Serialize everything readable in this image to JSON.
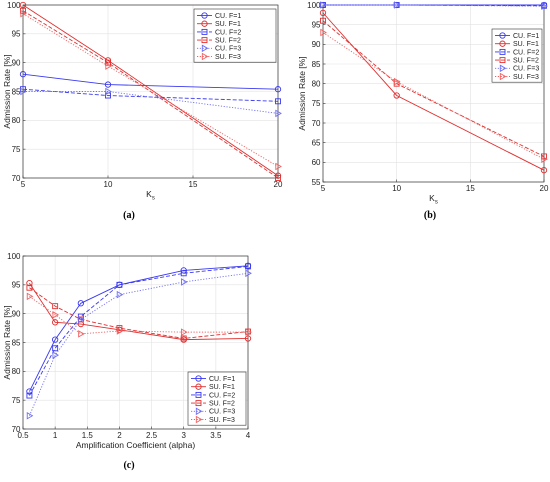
{
  "chart_data": [
    {
      "type": "line",
      "panel_label": "(a)",
      "xlabel": "K_s",
      "ylabel": "Admission Rate [%]",
      "xlim": [
        5,
        20
      ],
      "ylim": [
        70,
        100
      ],
      "xticks": [
        5,
        10,
        15,
        20
      ],
      "yticks": [
        70,
        75,
        80,
        85,
        90,
        95,
        100
      ],
      "grid": true,
      "legend_position": "top-right",
      "x": [
        5,
        10,
        20
      ],
      "series": [
        {
          "name": "CU. F=1",
          "values": [
            88.0,
            86.2,
            85.4
          ],
          "color": "#3a3af0",
          "style": "solid",
          "marker": "circle"
        },
        {
          "name": "SU. F=1",
          "values": [
            100.0,
            90.4,
            70.4
          ],
          "color": "#e03030",
          "style": "solid",
          "marker": "circle"
        },
        {
          "name": "CU. F=2",
          "values": [
            85.4,
            84.3,
            83.3
          ],
          "color": "#3a3af0",
          "style": "dashed",
          "marker": "square"
        },
        {
          "name": "SU. F=2",
          "values": [
            99.0,
            90.0,
            70.0
          ],
          "color": "#e03030",
          "style": "dashed",
          "marker": "square"
        },
        {
          "name": "CU. F=3",
          "values": [
            85.0,
            85.0,
            81.2
          ],
          "color": "#6f6ff5",
          "style": "dotted",
          "marker": "triangle-right"
        },
        {
          "name": "SU. F=3",
          "values": [
            98.5,
            89.4,
            72.0
          ],
          "color": "#f06060",
          "style": "dotted",
          "marker": "triangle-right"
        }
      ]
    },
    {
      "type": "line",
      "panel_label": "(b)",
      "xlabel": "K_s",
      "ylabel": "Admission Rate [%]",
      "xlim": [
        5,
        20
      ],
      "ylim": [
        55,
        100
      ],
      "xticks": [
        5,
        10,
        15,
        20
      ],
      "yticks": [
        55,
        60,
        65,
        70,
        75,
        80,
        85,
        90,
        95,
        100
      ],
      "grid": true,
      "legend_position": "right",
      "x": [
        5,
        10,
        20
      ],
      "series": [
        {
          "name": "CU. F=1",
          "values": [
            100.0,
            100.0,
            100.0
          ],
          "color": "#3a3af0",
          "style": "solid",
          "marker": "circle"
        },
        {
          "name": "SU. F=1",
          "values": [
            98.0,
            77.0,
            58.0
          ],
          "color": "#e03030",
          "style": "solid",
          "marker": "circle"
        },
        {
          "name": "CU. F=2",
          "values": [
            100.0,
            100.0,
            99.8
          ],
          "color": "#3a3af0",
          "style": "dashed",
          "marker": "square"
        },
        {
          "name": "SU. F=2",
          "values": [
            96.0,
            80.0,
            61.5
          ],
          "color": "#e03030",
          "style": "dashed",
          "marker": "square"
        },
        {
          "name": "CU. F=3",
          "values": [
            100.0,
            100.0,
            99.7
          ],
          "color": "#6f6ff5",
          "style": "dotted",
          "marker": "triangle-right"
        },
        {
          "name": "SU. F=3",
          "values": [
            93.0,
            80.5,
            60.8
          ],
          "color": "#f06060",
          "style": "dotted",
          "marker": "triangle-right"
        }
      ]
    },
    {
      "type": "line",
      "panel_label": "(c)",
      "xlabel": "Amplification Coefficient (alpha)",
      "ylabel": "Admission Rate [%]",
      "xlim": [
        0.5,
        4
      ],
      "ylim": [
        70,
        100
      ],
      "xticks": [
        0.5,
        1,
        1.5,
        2,
        2.5,
        3,
        3.5,
        4
      ],
      "yticks": [
        70,
        75,
        80,
        85,
        90,
        95,
        100
      ],
      "grid": true,
      "legend_position": "bottom-right",
      "x": [
        0.6,
        1,
        1.4,
        2,
        3,
        4
      ],
      "series": [
        {
          "name": "CU. F=1",
          "values": [
            76.5,
            85.5,
            91.8,
            95.0,
            97.5,
            98.3
          ],
          "color": "#3a3af0",
          "style": "solid",
          "marker": "circle"
        },
        {
          "name": "SU. F=1",
          "values": [
            95.3,
            88.5,
            88.2,
            87.2,
            85.5,
            85.7
          ],
          "color": "#e03030",
          "style": "solid",
          "marker": "circle"
        },
        {
          "name": "CU. F=2",
          "values": [
            75.8,
            84.0,
            89.5,
            95.0,
            97.0,
            98.2
          ],
          "color": "#3a3af0",
          "style": "dashed",
          "marker": "square"
        },
        {
          "name": "SU. F=2",
          "values": [
            94.5,
            91.3,
            89.0,
            87.5,
            85.7,
            86.9
          ],
          "color": "#e03030",
          "style": "dashed",
          "marker": "square"
        },
        {
          "name": "CU. F=3",
          "values": [
            72.3,
            82.8,
            89.0,
            93.3,
            95.5,
            97.0
          ],
          "color": "#6f6ff5",
          "style": "dotted",
          "marker": "triangle-right"
        },
        {
          "name": "SU. F=3",
          "values": [
            93.0,
            89.8,
            86.5,
            87.0,
            86.8,
            86.8
          ],
          "color": "#f06060",
          "style": "dotted",
          "marker": "triangle-right"
        }
      ]
    }
  ]
}
